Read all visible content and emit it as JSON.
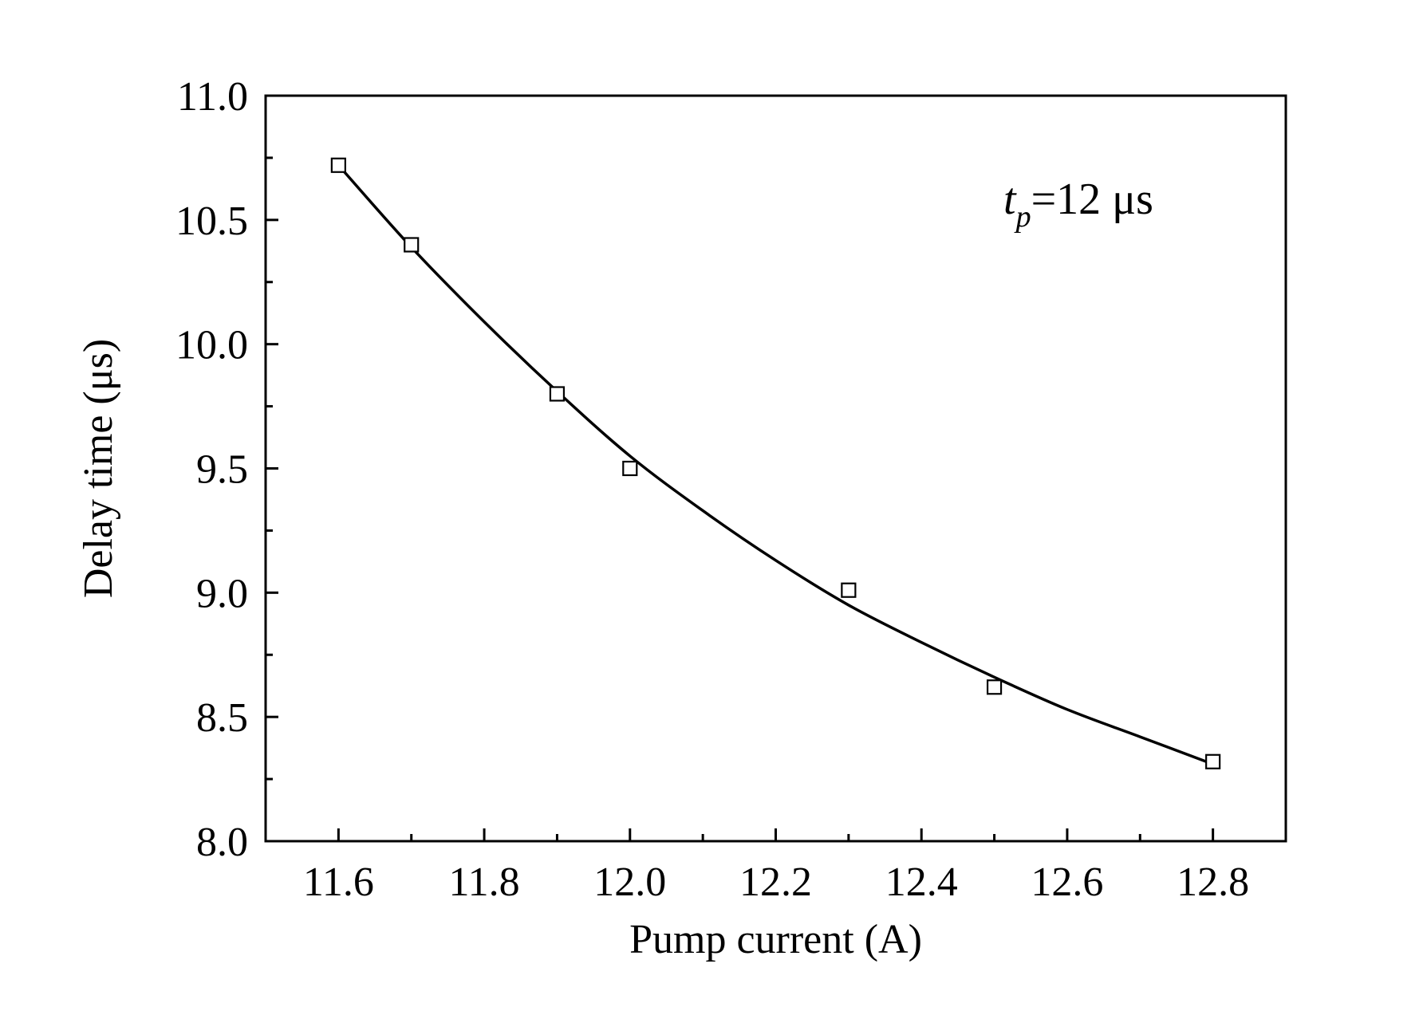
{
  "chart_data": {
    "type": "scatter",
    "title": "",
    "xlabel": "Pump current (A)",
    "ylabel": "Delay time (μs)",
    "xlim": [
      11.5,
      12.9
    ],
    "ylim": [
      8.0,
      11.0
    ],
    "x_ticks": [
      "11.6",
      "11.8",
      "12.0",
      "12.2",
      "12.4",
      "12.6",
      "12.8"
    ],
    "y_ticks": [
      "8.0",
      "8.5",
      "9.0",
      "9.5",
      "10.0",
      "10.5",
      "11.0"
    ],
    "grid": false,
    "legend": "none",
    "annotation": {
      "variable": "t",
      "subscript": "p",
      "text": "=12 μs"
    },
    "series": [
      {
        "marker": "open-square",
        "x": [
          11.6,
          11.7,
          11.9,
          12.0,
          12.3,
          12.5,
          12.8
        ],
        "y": [
          10.72,
          10.4,
          9.8,
          9.5,
          9.01,
          8.62,
          8.32
        ]
      },
      {
        "style": "fit-line",
        "x": [
          11.6,
          11.7,
          11.8,
          11.9,
          12.0,
          12.1,
          12.2,
          12.3,
          12.4,
          12.5,
          12.6,
          12.7,
          12.8
        ],
        "y": [
          10.72,
          10.39,
          10.09,
          9.81,
          9.55,
          9.33,
          9.13,
          8.95,
          8.8,
          8.66,
          8.53,
          8.42,
          8.31
        ]
      }
    ],
    "colors": {
      "axis": "#000000",
      "marker": "#000000",
      "line": "#000000"
    }
  }
}
